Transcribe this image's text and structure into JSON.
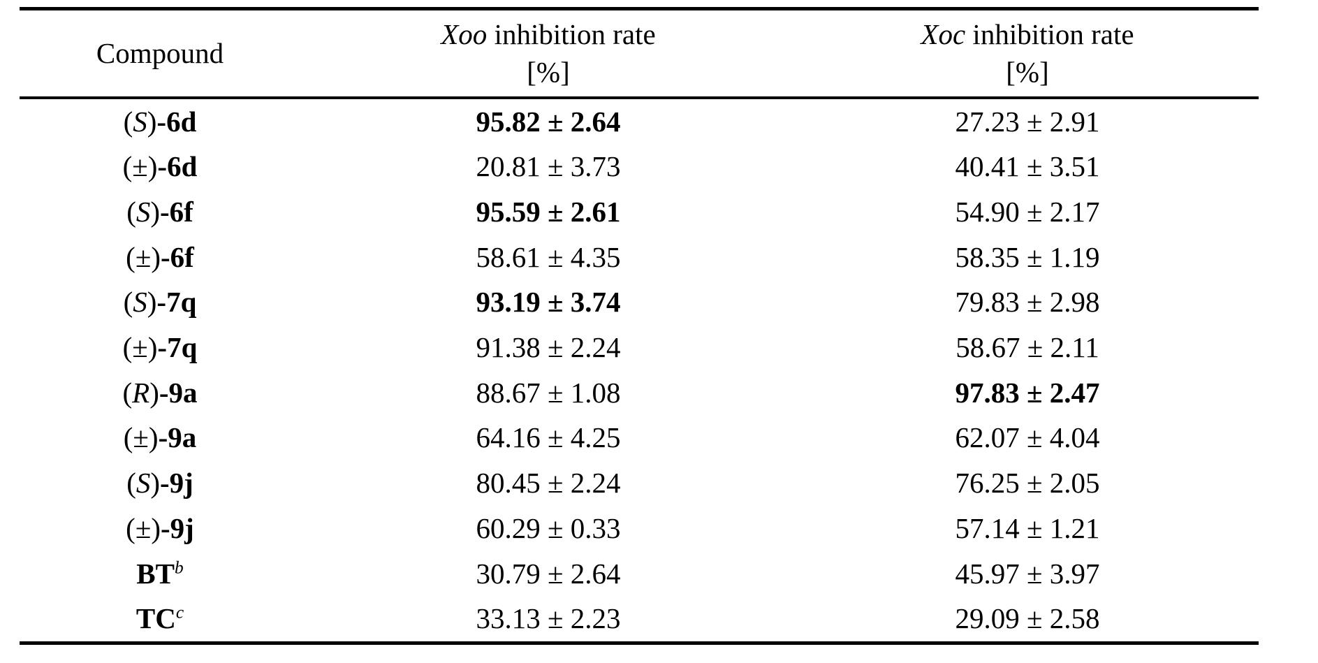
{
  "header": {
    "compound": "Compound",
    "xoo_abbrev": "Xoo",
    "xoo_rest": "inhibition rate",
    "xoo_unit": "[%]",
    "xoc_abbrev": "Xoc",
    "xoc_rest": "inhibition rate",
    "xoc_unit": "[%]"
  },
  "rows": [
    {
      "stereo": "S",
      "stereo_italic": true,
      "code": "6d",
      "sup": null,
      "xoo": "95.82 ± 2.64",
      "xoo_bold": true,
      "xoc": "27.23 ± 2.91",
      "xoc_bold": false
    },
    {
      "stereo": "±",
      "stereo_italic": false,
      "code": "6d",
      "sup": null,
      "xoo": "20.81 ± 3.73",
      "xoo_bold": false,
      "xoc": "40.41 ± 3.51",
      "xoc_bold": false
    },
    {
      "stereo": "S",
      "stereo_italic": true,
      "code": "6f",
      "sup": null,
      "xoo": "95.59 ± 2.61",
      "xoo_bold": true,
      "xoc": "54.90 ± 2.17",
      "xoc_bold": false
    },
    {
      "stereo": "±",
      "stereo_italic": false,
      "code": "6f",
      "sup": null,
      "xoo": "58.61 ± 4.35",
      "xoo_bold": false,
      "xoc": "58.35 ± 1.19",
      "xoc_bold": false
    },
    {
      "stereo": "S",
      "stereo_italic": true,
      "code": "7q",
      "sup": null,
      "xoo": "93.19 ± 3.74",
      "xoo_bold": true,
      "xoc": "79.83 ± 2.98",
      "xoc_bold": false
    },
    {
      "stereo": "±",
      "stereo_italic": false,
      "code": "7q",
      "sup": null,
      "xoo": "91.38 ± 2.24",
      "xoo_bold": false,
      "xoc": "58.67 ± 2.11",
      "xoc_bold": false
    },
    {
      "stereo": "R",
      "stereo_italic": true,
      "code": "9a",
      "sup": null,
      "xoo": "88.67 ± 1.08",
      "xoo_bold": false,
      "xoc": "97.83 ± 2.47",
      "xoc_bold": true
    },
    {
      "stereo": "±",
      "stereo_italic": false,
      "code": "9a",
      "sup": null,
      "xoo": "64.16 ± 4.25",
      "xoo_bold": false,
      "xoc": "62.07 ± 4.04",
      "xoc_bold": false
    },
    {
      "stereo": "S",
      "stereo_italic": true,
      "code": "9j",
      "sup": null,
      "xoo": "80.45 ± 2.24",
      "xoo_bold": false,
      "xoc": "76.25 ± 2.05",
      "xoc_bold": false
    },
    {
      "stereo": "±",
      "stereo_italic": false,
      "code": "9j",
      "sup": null,
      "xoo": "60.29 ± 0.33",
      "xoo_bold": false,
      "xoc": "57.14 ± 1.21",
      "xoc_bold": false
    },
    {
      "stereo": null,
      "stereo_italic": false,
      "code": "BT",
      "sup": "b",
      "xoo": "30.79 ± 2.64",
      "xoo_bold": false,
      "xoc": "45.97 ± 3.97",
      "xoc_bold": false
    },
    {
      "stereo": null,
      "stereo_italic": false,
      "code": "TC",
      "sup": "c",
      "xoo": "33.13 ± 2.23",
      "xoo_bold": false,
      "xoc": "29.09 ± 2.58",
      "xoc_bold": false
    }
  ]
}
